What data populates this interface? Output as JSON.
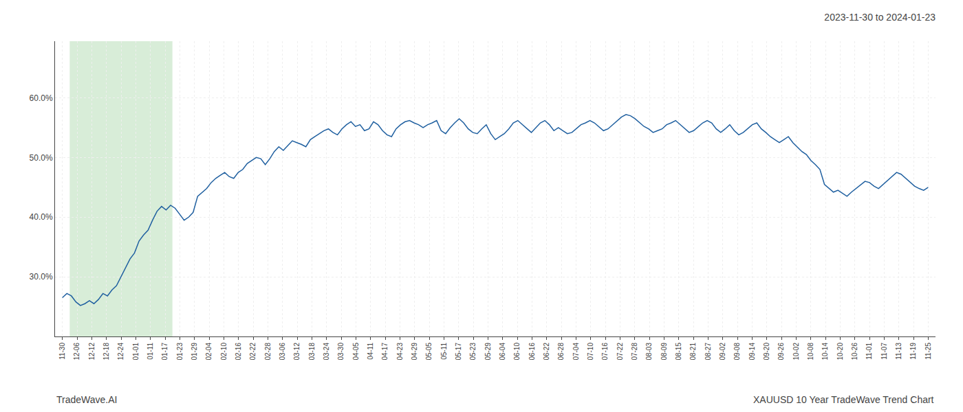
{
  "chart_data": {
    "type": "line",
    "title": "2023-11-30 to 2024-01-23",
    "annotations": [
      "TradeWave.AI",
      "XAUUSD 10 Year TradeWave Trend Chart"
    ],
    "color": "#2060a0",
    "highlight": {
      "x": [
        0.5,
        7.5
      ],
      "color": "#d8edd8"
    },
    "grid": true,
    "xlim": [
      -0.5,
      59.5
    ],
    "xticks": [
      {
        "value": 0,
        "label": "11-30"
      },
      {
        "value": 1,
        "label": "12-06"
      },
      {
        "value": 2,
        "label": "12-12"
      },
      {
        "value": 3,
        "label": "12-18"
      },
      {
        "value": 4,
        "label": "12-24"
      },
      {
        "value": 5,
        "label": "01-01"
      },
      {
        "value": 6,
        "label": "01-11"
      },
      {
        "value": 7,
        "label": "01-17"
      },
      {
        "value": 8,
        "label": "01-23"
      },
      {
        "value": 9,
        "label": "01-29"
      },
      {
        "value": 10,
        "label": "02-04"
      },
      {
        "value": 11,
        "label": "02-10"
      },
      {
        "value": 12,
        "label": "02-16"
      },
      {
        "value": 13,
        "label": "02-22"
      },
      {
        "value": 14,
        "label": "02-28"
      },
      {
        "value": 15,
        "label": "03-06"
      },
      {
        "value": 16,
        "label": "03-12"
      },
      {
        "value": 17,
        "label": "03-18"
      },
      {
        "value": 18,
        "label": "03-24"
      },
      {
        "value": 19,
        "label": "03-30"
      },
      {
        "value": 20,
        "label": "04-05"
      },
      {
        "value": 21,
        "label": "04-11"
      },
      {
        "value": 22,
        "label": "04-17"
      },
      {
        "value": 23,
        "label": "04-23"
      },
      {
        "value": 24,
        "label": "04-29"
      },
      {
        "value": 25,
        "label": "05-05"
      },
      {
        "value": 26,
        "label": "05-11"
      },
      {
        "value": 27,
        "label": "05-17"
      },
      {
        "value": 28,
        "label": "05-23"
      },
      {
        "value": 29,
        "label": "05-29"
      },
      {
        "value": 30,
        "label": "06-04"
      },
      {
        "value": 31,
        "label": "06-10"
      },
      {
        "value": 32,
        "label": "06-16"
      },
      {
        "value": 33,
        "label": "06-22"
      },
      {
        "value": 34,
        "label": "06-28"
      },
      {
        "value": 35,
        "label": "07-04"
      },
      {
        "value": 36,
        "label": "07-10"
      },
      {
        "value": 37,
        "label": "07-16"
      },
      {
        "value": 38,
        "label": "07-22"
      },
      {
        "value": 39,
        "label": "07-28"
      },
      {
        "value": 40,
        "label": "08-03"
      },
      {
        "value": 41,
        "label": "08-09"
      },
      {
        "value": 42,
        "label": "08-15"
      },
      {
        "value": 43,
        "label": "08-21"
      },
      {
        "value": 44,
        "label": "08-27"
      },
      {
        "value": 45,
        "label": "09-02"
      },
      {
        "value": 46,
        "label": "09-08"
      },
      {
        "value": 47,
        "label": "09-14"
      },
      {
        "value": 48,
        "label": "09-20"
      },
      {
        "value": 49,
        "label": "09-26"
      },
      {
        "value": 50,
        "label": "10-02"
      },
      {
        "value": 51,
        "label": "10-08"
      },
      {
        "value": 52,
        "label": "10-14"
      },
      {
        "value": 53,
        "label": "10-20"
      },
      {
        "value": 54,
        "label": "10-26"
      },
      {
        "value": 55,
        "label": "11-01"
      },
      {
        "value": 56,
        "label": "11-07"
      },
      {
        "value": 57,
        "label": "11-13"
      },
      {
        "value": 58,
        "label": "11-19"
      },
      {
        "value": 59,
        "label": "11-25"
      }
    ],
    "ylim": [
      0.2,
      0.695
    ],
    "yticks": [
      {
        "value": 0.3,
        "label": "30.0%"
      },
      {
        "value": 0.4,
        "label": "40.0%"
      },
      {
        "value": 0.5,
        "label": "50.0%"
      },
      {
        "value": 0.6,
        "label": "60.0%"
      }
    ],
    "values": [
      0.265,
      0.272,
      0.268,
      0.258,
      0.252,
      0.255,
      0.26,
      0.255,
      0.262,
      0.272,
      0.268,
      0.278,
      0.285,
      0.3,
      0.315,
      0.33,
      0.34,
      0.36,
      0.37,
      0.378,
      0.395,
      0.41,
      0.418,
      0.412,
      0.42,
      0.415,
      0.405,
      0.395,
      0.4,
      0.408,
      0.435,
      0.442,
      0.448,
      0.458,
      0.465,
      0.47,
      0.475,
      0.468,
      0.465,
      0.475,
      0.48,
      0.49,
      0.495,
      0.5,
      0.498,
      0.488,
      0.498,
      0.51,
      0.518,
      0.512,
      0.52,
      0.528,
      0.525,
      0.522,
      0.518,
      0.53,
      0.535,
      0.54,
      0.545,
      0.548,
      0.542,
      0.538,
      0.548,
      0.555,
      0.56,
      0.552,
      0.555,
      0.545,
      0.548,
      0.56,
      0.555,
      0.545,
      0.538,
      0.535,
      0.548,
      0.555,
      0.56,
      0.562,
      0.558,
      0.555,
      0.55,
      0.555,
      0.558,
      0.562,
      0.545,
      0.54,
      0.55,
      0.558,
      0.565,
      0.558,
      0.548,
      0.542,
      0.54,
      0.548,
      0.555,
      0.54,
      0.53,
      0.535,
      0.54,
      0.548,
      0.558,
      0.562,
      0.555,
      0.548,
      0.542,
      0.55,
      0.558,
      0.562,
      0.555,
      0.545,
      0.55,
      0.545,
      0.54,
      0.542,
      0.548,
      0.555,
      0.558,
      0.562,
      0.558,
      0.552,
      0.545,
      0.548,
      0.555,
      0.562,
      0.568,
      0.572,
      0.57,
      0.565,
      0.558,
      0.552,
      0.548,
      0.542,
      0.545,
      0.548,
      0.555,
      0.558,
      0.562,
      0.555,
      0.548,
      0.542,
      0.545,
      0.552,
      0.558,
      0.562,
      0.558,
      0.548,
      0.542,
      0.548,
      0.555,
      0.545,
      0.538,
      0.542,
      0.548,
      0.555,
      0.558,
      0.548,
      0.542,
      0.535,
      0.53,
      0.525,
      0.53,
      0.535,
      0.525,
      0.518,
      0.51,
      0.505,
      0.495,
      0.488,
      0.48,
      0.455,
      0.448,
      0.442,
      0.445,
      0.44,
      0.435,
      0.442,
      0.448,
      0.455,
      0.46,
      0.458,
      0.452,
      0.448,
      0.455,
      0.462,
      0.468,
      0.475,
      0.472,
      0.465,
      0.458,
      0.452,
      0.448,
      0.445,
      0.45
    ]
  }
}
